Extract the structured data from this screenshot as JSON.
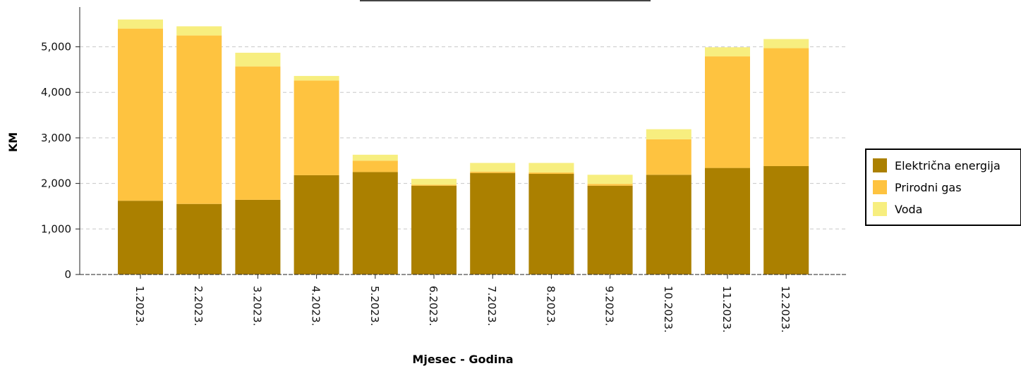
{
  "chart_data": {
    "type": "bar",
    "stacked": true,
    "title": "",
    "xlabel": "Mjesec - Godina",
    "ylabel": "KM",
    "ylim": [
      0,
      5800
    ],
    "yticks": [
      0,
      1000,
      2000,
      3000,
      4000,
      5000
    ],
    "ytick_labels": [
      "0",
      "1,000",
      "2,000",
      "3,000",
      "4,000",
      "5,000"
    ],
    "grid": true,
    "legend_position": "right",
    "categories": [
      "1.2023.",
      "2.2023.",
      "3.2023.",
      "4.2023.",
      "5.2023.",
      "6.2023.",
      "7.2023.",
      "8.2023.",
      "9.2023.",
      "10.2023.",
      "11.2023.",
      "12.2023."
    ],
    "series": [
      {
        "name": "Električna energija",
        "color": "#ab8000",
        "values": [
          1620,
          1550,
          1640,
          2180,
          2250,
          1950,
          2230,
          2210,
          1950,
          2190,
          2340,
          2380
        ]
      },
      {
        "name": "Prirodni gas",
        "color": "#fec340",
        "values": [
          3780,
          3700,
          2930,
          2080,
          250,
          20,
          30,
          30,
          40,
          780,
          2450,
          2590
        ]
      },
      {
        "name": "Voda",
        "color": "#f7ee7f",
        "values": [
          200,
          200,
          300,
          100,
          130,
          130,
          190,
          210,
          200,
          220,
          200,
          200
        ]
      }
    ]
  }
}
